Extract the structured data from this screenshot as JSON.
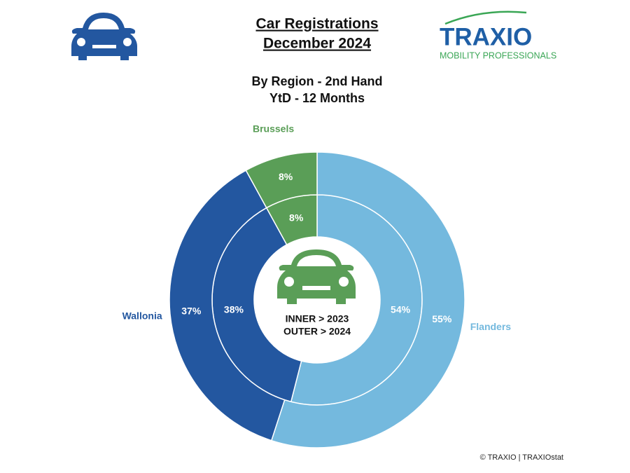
{
  "chart_data": {
    "type": "nested-donut",
    "title": [
      "Car Registrations",
      "December 2024"
    ],
    "subtitle": [
      "By Region - 2nd Hand",
      "YtD - 12 Months"
    ],
    "logo_text": "TRAXIO",
    "logo_tagline": "MOBILITY PROFESSIONALS",
    "source": "© TRAXIO | TRAXIOstat",
    "categories": [
      "Flanders",
      "Wallonia",
      "Brussels"
    ],
    "colors": [
      "#74b9de",
      "#2357a0",
      "#5a9e57"
    ],
    "series": [
      {
        "name": "INNER > 2023",
        "values": [
          54,
          38,
          8
        ],
        "value_labels": [
          "54%",
          "38%",
          "8%"
        ]
      },
      {
        "name": "OUTER > 2024",
        "values": [
          55,
          37,
          8
        ],
        "value_labels": [
          "55%",
          "37%",
          "8%"
        ]
      }
    ]
  }
}
